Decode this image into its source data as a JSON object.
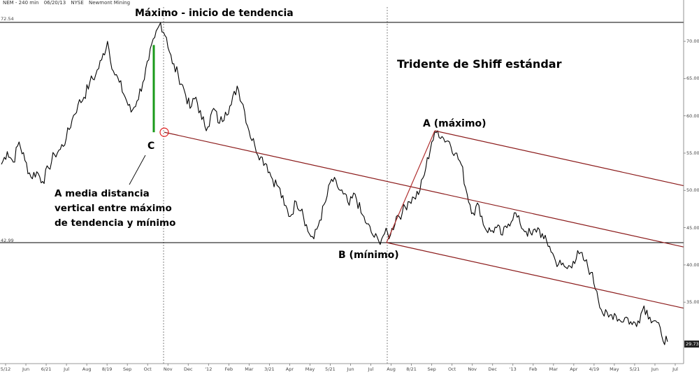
{
  "header": {
    "symbol": "NEM - 240 min",
    "date": "06/20/13",
    "exchange": "NYSE",
    "company": "Newmont Mining"
  },
  "annotations": {
    "max_start": "Máximo - inicio de tendencia",
    "title": "Tridente de Shiff estándar",
    "point_a": "A (máximo)",
    "point_b": "B (mínimo)",
    "point_c": "C",
    "note": "A media distancia vertical entre máximo de tendencia y mínimo"
  },
  "colors": {
    "pitchfork": "#8b1a1a",
    "trendline": "#b03030",
    "marker_bar": "#1a9a1a",
    "circle": "#e02020",
    "price": "#000000",
    "horizontal": "#000000"
  },
  "chart_data": {
    "type": "line",
    "ylim": [
      27,
      74
    ],
    "y_ticks": [
      70,
      65,
      60,
      55,
      50,
      45,
      40,
      35
    ],
    "y_tick_labels": [
      "70.00",
      "65.00",
      "60.00",
      "55.00",
      "50.00",
      "45.00",
      "40.00",
      "35.00"
    ],
    "x_tick_labels": [
      "5/12",
      "Jun",
      "6/21",
      "Jul",
      "Aug",
      "8/19",
      "Sep",
      "Oct",
      "Nov",
      "Dec",
      "'12",
      "Feb",
      "Mar",
      "3/21",
      "Apr",
      "May",
      "5/21",
      "Jun",
      "Jul",
      "Aug",
      "8/21",
      "Sep",
      "Oct",
      "Nov",
      "Dec",
      "'13",
      "Feb",
      "Mar",
      "Apr",
      "4/19",
      "May",
      "5/21",
      "Jun",
      "Jul"
    ],
    "horizontal_levels": [
      {
        "value": 72.54,
        "label": "72.54"
      },
      {
        "value": 42.99,
        "label": "42.99"
      }
    ],
    "last_price": "29.73",
    "series": [
      {
        "values": [
          53.5,
          55.2,
          53.8,
          56.5,
          54.0,
          51.8,
          52.5,
          51.2,
          53.0,
          54.8,
          55.5,
          57.0,
          59.5,
          61.5,
          62.5,
          64.5,
          65.5,
          67.5,
          70.0,
          66.0,
          64.5,
          62.5,
          60.5,
          62.0,
          64.5,
          67.5,
          70.5,
          72.5,
          70.5,
          67.0,
          65.5,
          63.5,
          61.0,
          62.5,
          59.5,
          58.5,
          61.0,
          59.0,
          60.5,
          61.5,
          64.0,
          61.5,
          58.0,
          56.0,
          54.5,
          53.5,
          51.5,
          50.5,
          48.0,
          46.5,
          48.5,
          47.5,
          44.5,
          43.5,
          46.0,
          48.5,
          51.5,
          50.5,
          49.5,
          48.0,
          49.5,
          47.0,
          45.5,
          44.0,
          43.2,
          44.2,
          44.0,
          46.5,
          47.0,
          48.5,
          49.0,
          50.0,
          53.0,
          56.5,
          58.0,
          57.0,
          56.5,
          55.0,
          53.5,
          49.5,
          47.0,
          48.0,
          45.0,
          44.5,
          45.0,
          44.0,
          45.5,
          47.0,
          45.5,
          44.5,
          44.0,
          45.0,
          43.5,
          42.5,
          40.5,
          40.0,
          39.5,
          40.5,
          41.5,
          40.5,
          39.0,
          36.5,
          33.5,
          33.0,
          33.5,
          32.5,
          33.0,
          32.0,
          32.5,
          34.5,
          33.0,
          32.5,
          30.5,
          29.7
        ]
      }
    ],
    "points": [
      {
        "name": "A",
        "date_label": "Sep",
        "value": 58.0
      },
      {
        "name": "B",
        "date_label": "Aug",
        "value": 43.0
      },
      {
        "name": "C",
        "date_label": "Nov",
        "value": 57.8
      }
    ]
  }
}
